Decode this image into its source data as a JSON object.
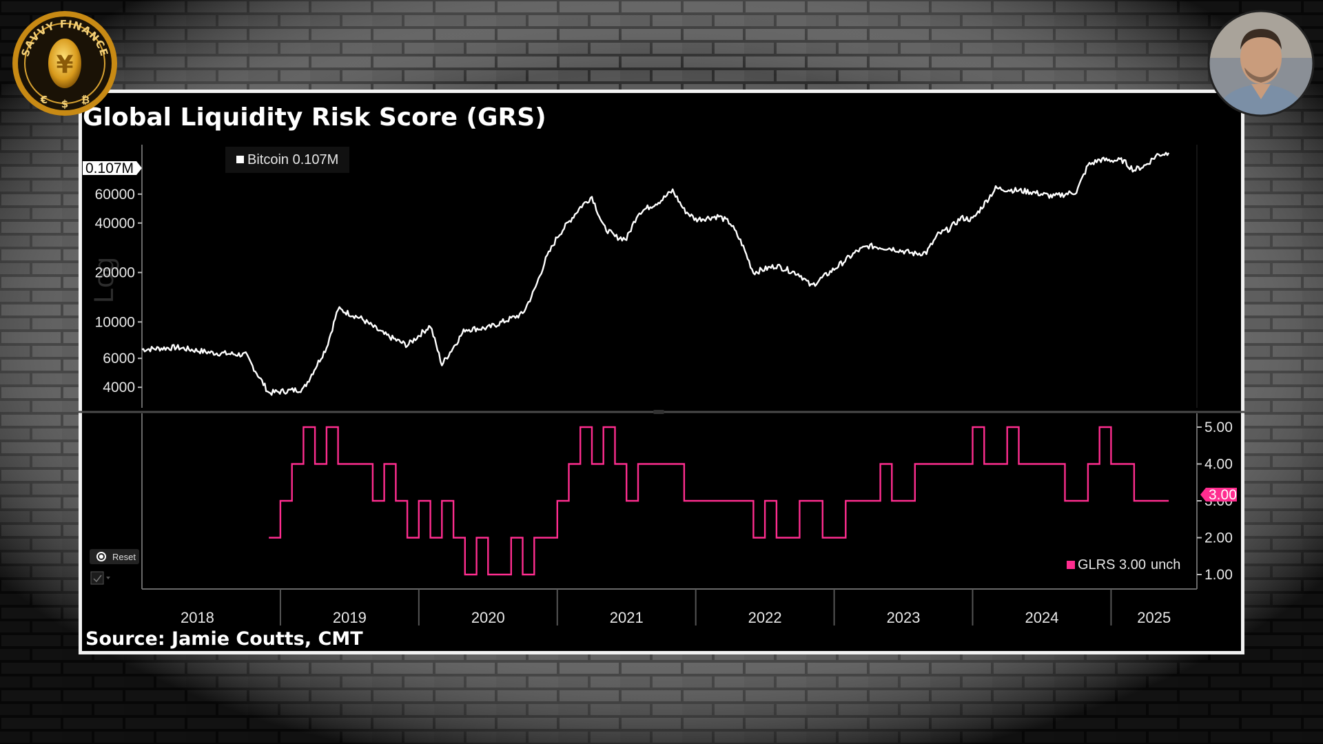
{
  "branding": {
    "logo_text": "SAVVY FINANCE",
    "logo_symbols": [
      "€",
      "$",
      "₿"
    ],
    "logo_center_symbol": "¥"
  },
  "overlay": {
    "avatar": "presenter-avatar"
  },
  "colors": {
    "bitcoin": "#ffffff",
    "glrs": "#ff2d8f",
    "background": "#000000",
    "frame": "#f2f2f2"
  },
  "chart_data": [
    {
      "type": "line",
      "title": "Global Liquidity Risk Score (GRS)",
      "scale": "Log",
      "yscale": "log",
      "ylim": [
        3000,
        120000
      ],
      "yticks": [
        "60000",
        "40000",
        "20000",
        "10000",
        "6000",
        "4000"
      ],
      "last_value_label": "0.107M",
      "legend": {
        "label": "Bitcoin 0.107M"
      },
      "series": [
        {
          "name": "Bitcoin",
          "x": [
            "2018-01",
            "2018-04",
            "2018-07",
            "2018-10",
            "2018-12",
            "2019-03",
            "2019-05",
            "2019-06",
            "2019-08",
            "2019-10",
            "2019-12",
            "2020-02",
            "2020-03",
            "2020-05",
            "2020-07",
            "2020-09",
            "2020-10",
            "2020-11",
            "2020-12",
            "2021-01",
            "2021-03",
            "2021-04",
            "2021-05",
            "2021-06",
            "2021-07",
            "2021-08",
            "2021-10",
            "2021-11",
            "2021-12",
            "2022-01",
            "2022-03",
            "2022-04",
            "2022-05",
            "2022-06",
            "2022-08",
            "2022-10",
            "2022-11",
            "2023-01",
            "2023-03",
            "2023-04",
            "2023-06",
            "2023-08",
            "2023-09",
            "2023-10",
            "2023-11",
            "2023-12",
            "2024-01",
            "2024-03",
            "2024-04",
            "2024-06",
            "2024-08",
            "2024-09",
            "2024-10",
            "2024-11",
            "2024-12",
            "2025-02",
            "2025-03",
            "2025-04",
            "2025-05",
            "2025-06"
          ],
          "values": [
            6800,
            7000,
            6500,
            6300,
            3700,
            3900,
            7000,
            12000,
            10500,
            8400,
            7200,
            9500,
            5500,
            9000,
            9200,
            10500,
            11200,
            15500,
            24000,
            33000,
            50000,
            58000,
            38000,
            33000,
            32000,
            46000,
            55000,
            63000,
            48000,
            42000,
            44000,
            40000,
            30000,
            20000,
            22000,
            19500,
            16500,
            21000,
            27000,
            29000,
            28000,
            26000,
            26500,
            34000,
            37000,
            43000,
            42000,
            65000,
            64000,
            62000,
            58000,
            60000,
            62000,
            90000,
            97000,
            96000,
            84000,
            90000,
            104000,
            107000
          ]
        }
      ]
    },
    {
      "type": "line",
      "step": true,
      "ylim": [
        1,
        5
      ],
      "yticks": [
        "5.00",
        "4.00",
        "3.00",
        "2.00",
        "1.00"
      ],
      "last_value_label": "3.00",
      "legend": {
        "label": "GLRS 3.00",
        "suffix": "unch"
      },
      "x_labels": [
        "2018",
        "2019",
        "2020",
        "2021",
        "2022",
        "2023",
        "2024",
        "2025"
      ],
      "series": [
        {
          "name": "GLRS",
          "x": [
            "2018-12",
            "2019-01",
            "2019-02",
            "2019-03",
            "2019-04",
            "2019-05",
            "2019-06",
            "2019-08",
            "2019-09",
            "2019-10",
            "2019-11",
            "2019-12",
            "2020-01",
            "2020-02",
            "2020-03",
            "2020-04",
            "2020-05",
            "2020-06",
            "2020-07",
            "2020-09",
            "2020-10",
            "2020-11",
            "2020-12",
            "2021-01",
            "2021-02",
            "2021-03",
            "2021-04",
            "2021-05",
            "2021-06",
            "2021-07",
            "2021-08",
            "2021-10",
            "2021-12",
            "2022-02",
            "2022-04",
            "2022-06",
            "2022-07",
            "2022-08",
            "2022-10",
            "2022-12",
            "2023-01",
            "2023-02",
            "2023-04",
            "2023-05",
            "2023-06",
            "2023-08",
            "2023-10",
            "2023-12",
            "2024-01",
            "2024-02",
            "2024-04",
            "2024-05",
            "2024-06",
            "2024-08",
            "2024-09",
            "2024-11",
            "2024-12",
            "2025-01",
            "2025-03",
            "2025-06"
          ],
          "values": [
            2,
            3,
            4,
            5,
            4,
            5,
            4,
            4,
            3,
            4,
            3,
            2,
            3,
            2,
            3,
            2,
            1,
            2,
            1,
            2,
            1,
            2,
            2,
            3,
            4,
            5,
            4,
            5,
            4,
            3,
            4,
            4,
            3,
            3,
            3,
            2,
            3,
            2,
            3,
            2,
            2,
            3,
            3,
            4,
            3,
            4,
            4,
            4,
            5,
            4,
            5,
            4,
            4,
            4,
            3,
            4,
            5,
            4,
            3,
            3
          ]
        }
      ]
    }
  ],
  "controls": {
    "reset_label": "Reset"
  },
  "source": "Source: Jamie Coutts, CMT"
}
